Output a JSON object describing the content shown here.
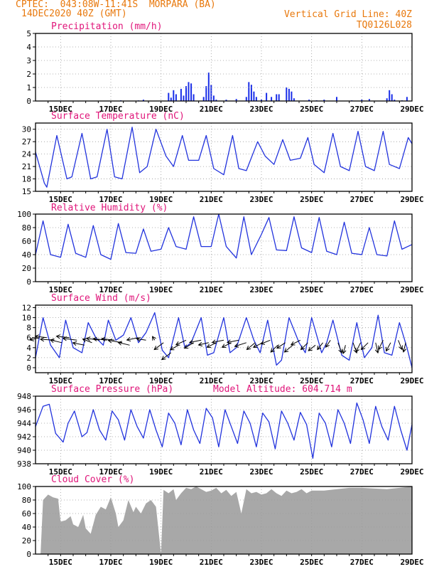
{
  "header": {
    "title": "CPTEC:  043:08W-11:41S  MORPARA (BA)",
    "date": "14DEC2020 40Z (GMT)",
    "grid_line": "Vertical Grid Line: 40Z",
    "code": "TQ0126L028"
  },
  "colors": {
    "series": "#2233dd",
    "bars": "#1a2ee8",
    "cloud": "#a8a8a8",
    "title": "#e0157a",
    "header": "#e8780c",
    "grid": "#9a9a9a",
    "wind_arrow": "#000000"
  },
  "x_axis": {
    "tick_labels": [
      "15DEC",
      "17DEC",
      "19DEC",
      "21DEC",
      "23DEC",
      "25DEC",
      "27DEC",
      "29DEC"
    ],
    "tick_days": [
      15,
      17,
      19,
      21,
      23,
      25,
      27,
      29
    ],
    "range_days": [
      14,
      29
    ],
    "minor_step_days": 0.5
  },
  "chart_data": [
    {
      "type": "bar",
      "title": "Precipitation (mm/h)",
      "ylim": [
        0,
        5
      ],
      "yticks": [
        0,
        1,
        2,
        3,
        4,
        5
      ],
      "grid": true,
      "x": [
        17.4,
        18.1,
        18.3,
        19.3,
        19.4,
        19.5,
        19.6,
        19.8,
        19.9,
        20.0,
        20.1,
        20.2,
        20.3,
        20.7,
        20.8,
        20.9,
        21.0,
        21.1,
        21.2,
        21.6,
        22.0,
        22.4,
        22.5,
        22.6,
        22.7,
        22.8,
        23.0,
        23.2,
        23.4,
        23.6,
        23.7,
        24.0,
        24.1,
        24.2,
        24.3,
        24.9,
        25.2,
        25.5,
        26.0,
        26.6,
        27.0,
        27.3,
        28.0,
        28.1,
        28.2,
        28.3,
        28.6,
        28.8
      ],
      "values": [
        0.05,
        0.04,
        0.1,
        0.6,
        0.25,
        0.8,
        0.5,
        0.9,
        0.4,
        1.1,
        1.4,
        1.3,
        0.5,
        0.3,
        1.1,
        2.1,
        1.2,
        0.4,
        0.1,
        0.1,
        0.15,
        0.3,
        1.4,
        1.2,
        0.7,
        0.3,
        0.1,
        0.6,
        0.3,
        0.5,
        0.5,
        1.0,
        0.9,
        0.7,
        0.2,
        0.1,
        0.05,
        0.1,
        0.3,
        0.05,
        0.1,
        0.15,
        0.2,
        0.8,
        0.5,
        0.1,
        0.05,
        0.3
      ]
    },
    {
      "type": "line",
      "title": "Surface Temperature (nC)",
      "ylim": [
        15,
        31.5
      ],
      "yticks": [
        15,
        18,
        21,
        24,
        27,
        30
      ],
      "grid": true,
      "x": [
        14.0,
        14.35,
        14.45,
        14.85,
        15.25,
        15.45,
        15.85,
        16.2,
        16.45,
        16.85,
        17.15,
        17.45,
        17.85,
        18.15,
        18.45,
        18.8,
        19.2,
        19.5,
        19.85,
        20.1,
        20.5,
        20.8,
        21.1,
        21.5,
        21.85,
        22.1,
        22.4,
        22.85,
        23.15,
        23.5,
        23.85,
        24.15,
        24.55,
        24.85,
        25.1,
        25.5,
        25.85,
        26.15,
        26.5,
        26.85,
        27.15,
        27.5,
        27.85,
        28.1,
        28.5,
        28.85,
        29.0
      ],
      "series": [
        {
          "values": [
            24.5,
            17.0,
            16.0,
            28.5,
            18.0,
            18.5,
            29.0,
            18.0,
            18.5,
            30.0,
            18.5,
            18.0,
            30.5,
            19.5,
            21.0,
            30.0,
            23.5,
            21.0,
            28.5,
            22.5,
            22.5,
            28.5,
            20.5,
            19.0,
            28.5,
            20.5,
            20.0,
            27.0,
            23.5,
            21.5,
            27.5,
            22.5,
            23.0,
            28.0,
            21.5,
            19.5,
            29.0,
            21.0,
            20.0,
            29.5,
            21.0,
            20.0,
            29.5,
            21.5,
            20.5,
            28.0,
            26.5
          ]
        }
      ]
    },
    {
      "type": "line",
      "title": "Relative Humidity (%)",
      "ylim": [
        0,
        100
      ],
      "yticks": [
        0,
        20,
        40,
        60,
        80,
        100
      ],
      "grid": true,
      "x": [
        14.0,
        14.3,
        14.6,
        15.0,
        15.3,
        15.6,
        16.0,
        16.3,
        16.6,
        17.0,
        17.3,
        17.6,
        18.0,
        18.3,
        18.6,
        19.0,
        19.3,
        19.6,
        20.0,
        20.3,
        20.6,
        21.0,
        21.3,
        21.6,
        22.0,
        22.3,
        22.6,
        23.0,
        23.3,
        23.6,
        24.0,
        24.3,
        24.6,
        25.0,
        25.3,
        25.6,
        26.0,
        26.3,
        26.6,
        27.0,
        27.3,
        27.6,
        28.0,
        28.3,
        28.6,
        29.0
      ],
      "series": [
        {
          "values": [
            40,
            90,
            40,
            36,
            85,
            42,
            36,
            83,
            40,
            33,
            86,
            43,
            42,
            78,
            45,
            48,
            80,
            52,
            48,
            96,
            52,
            52,
            100,
            52,
            35,
            96,
            40,
            70,
            95,
            47,
            46,
            96,
            50,
            43,
            95,
            45,
            40,
            88,
            42,
            40,
            80,
            40,
            38,
            90,
            48,
            55
          ]
        }
      ]
    },
    {
      "type": "line",
      "title": "Surface Wind (m/s)",
      "ylim": [
        -1,
        12.5
      ],
      "yticks": [
        0,
        2,
        4,
        6,
        8,
        10,
        12
      ],
      "grid": true,
      "x": [
        14.0,
        14.3,
        14.6,
        14.95,
        15.2,
        15.5,
        15.85,
        16.1,
        16.4,
        16.7,
        16.9,
        17.2,
        17.5,
        17.8,
        18.1,
        18.4,
        18.75,
        19.05,
        19.3,
        19.7,
        19.95,
        20.2,
        20.6,
        20.85,
        21.1,
        21.5,
        21.75,
        22.0,
        22.4,
        22.7,
        22.95,
        23.25,
        23.6,
        23.8,
        24.1,
        24.5,
        24.75,
        25.0,
        25.4,
        25.6,
        25.85,
        26.2,
        26.5,
        26.8,
        27.1,
        27.4,
        27.65,
        27.9,
        28.2,
        28.5,
        28.8,
        29.0
      ],
      "series": [
        {
          "values": [
            2.0,
            10.0,
            4.5,
            2.0,
            9.5,
            4.0,
            3.0,
            9.0,
            6.0,
            4.5,
            9.5,
            5.5,
            6.5,
            10.0,
            5.0,
            7.0,
            11.0,
            3.5,
            2.0,
            10.0,
            4.0,
            5.0,
            10.0,
            2.5,
            3.0,
            10.0,
            3.0,
            4.0,
            10.0,
            5.5,
            3.0,
            9.5,
            0.5,
            1.5,
            10.0,
            5.0,
            3.0,
            10.0,
            3.0,
            5.0,
            9.5,
            2.5,
            1.5,
            9.0,
            2.0,
            4.0,
            10.5,
            3.0,
            2.5,
            9.0,
            4.0,
            0.0
          ]
        }
      ],
      "arrows": {
        "x": [
          14.15,
          14.45,
          14.75,
          15.05,
          15.35,
          15.65,
          15.95,
          16.25,
          16.55,
          16.85,
          17.15,
          17.45,
          17.75,
          18.1,
          18.4,
          18.75,
          19.1,
          19.4,
          19.7,
          20.0,
          20.3,
          20.6,
          20.9,
          21.2,
          21.5,
          21.8,
          22.1,
          22.4,
          22.75,
          23.05,
          23.35,
          23.65,
          23.95,
          24.25,
          24.55,
          24.85,
          25.15,
          25.45,
          25.75,
          26.05,
          26.35,
          26.65,
          26.95,
          27.25,
          27.55,
          27.85,
          28.15,
          28.45,
          28.75
        ],
        "y": [
          6.0,
          6.0,
          5.5,
          5.0,
          6.0,
          5.5,
          4.5,
          5.0,
          5.5,
          5.5,
          5.5,
          5.0,
          4.5,
          6.0,
          5.5,
          5.5,
          5.0,
          3.0,
          4.5,
          5.5,
          5.0,
          5.5,
          5.0,
          5.0,
          5.5,
          5.0,
          5.5,
          5.0,
          5.0,
          5.0,
          5.5,
          4.5,
          5.0,
          4.5,
          5.5,
          5.0,
          4.5,
          5.0,
          5.5,
          5.0,
          4.5,
          5.0,
          5.0,
          5.0,
          5.0,
          5.5,
          5.0,
          5.5,
          5.0
        ],
        "u": [
          -2.0,
          -2.5,
          -3.0,
          -2.5,
          -2.8,
          -3.0,
          -2.5,
          -2.0,
          -2.8,
          -3.0,
          -2.8,
          -3.0,
          -2.5,
          -2.5,
          -2.0,
          -0.5,
          -2.0,
          -2.0,
          -1.8,
          -2.2,
          -2.0,
          -2.5,
          -2.2,
          -2.0,
          -2.5,
          -2.0,
          -2.5,
          -2.5,
          -1.8,
          -2.0,
          -2.0,
          -1.5,
          -1.8,
          -1.8,
          -2.0,
          -1.5,
          -1.5,
          -1.2,
          -1.0,
          0.8,
          -0.5,
          0.8,
          -1.0,
          -1.5,
          0.5,
          -1.0,
          -1.0,
          0.8,
          -0.5
        ],
        "v": [
          -0.5,
          0.3,
          0.2,
          0.6,
          0.3,
          0.4,
          0.5,
          0.8,
          0.4,
          0.3,
          0.3,
          0.5,
          0.6,
          -0.5,
          0.3,
          0.8,
          -1.5,
          -1.5,
          -1.0,
          -1.0,
          -1.2,
          -0.5,
          -0.5,
          -1.0,
          -0.5,
          -1.0,
          -0.5,
          -0.8,
          -1.5,
          -1.0,
          -0.8,
          -1.5,
          -1.2,
          -1.5,
          -1.0,
          -1.5,
          -1.2,
          -1.5,
          -1.5,
          -2.2,
          -1.8,
          -2.2,
          -2.0,
          -1.5,
          -2.2,
          -2.0,
          -1.8,
          -2.0,
          -2.0
        ]
      }
    },
    {
      "type": "line",
      "title": "Surface Pressure (hPa)",
      "annotation": "Model Altitude: 604.714 m",
      "ylim": [
        938,
        948
      ],
      "yticks": [
        938,
        940,
        942,
        944,
        946,
        948
      ],
      "grid": true,
      "x": [
        14.0,
        14.3,
        14.55,
        14.8,
        15.1,
        15.3,
        15.55,
        15.85,
        16.05,
        16.3,
        16.55,
        16.8,
        17.05,
        17.3,
        17.55,
        17.8,
        18.05,
        18.3,
        18.55,
        18.8,
        19.05,
        19.3,
        19.55,
        19.8,
        20.05,
        20.3,
        20.55,
        20.8,
        21.05,
        21.3,
        21.55,
        21.8,
        22.05,
        22.3,
        22.55,
        22.8,
        23.05,
        23.3,
        23.55,
        23.8,
        24.05,
        24.3,
        24.55,
        24.8,
        25.05,
        25.3,
        25.55,
        25.8,
        26.05,
        26.3,
        26.55,
        26.8,
        27.05,
        27.3,
        27.55,
        27.8,
        28.05,
        28.3,
        28.55,
        28.8,
        29.0
      ],
      "series": [
        {
          "values": [
            943.5,
            946.5,
            946.8,
            942.5,
            941.2,
            944.0,
            945.8,
            942.0,
            942.6,
            946.0,
            943.0,
            941.5,
            945.8,
            944.5,
            941.5,
            946.0,
            943.5,
            941.8,
            946.0,
            943.0,
            940.5,
            945.5,
            944.0,
            940.8,
            946.0,
            943.0,
            941.0,
            946.2,
            944.8,
            940.5,
            946.0,
            943.5,
            941.0,
            945.8,
            944.0,
            940.5,
            945.5,
            944.2,
            940.2,
            945.8,
            944.0,
            941.5,
            945.6,
            943.8,
            938.8,
            945.5,
            944.0,
            940.5,
            946.0,
            944.0,
            941.0,
            947.0,
            944.5,
            941.0,
            946.5,
            943.5,
            941.5,
            946.5,
            943.0,
            940.0,
            943.8
          ]
        }
      ]
    },
    {
      "type": "area",
      "title": "Cloud Cover (%)",
      "ylim": [
        0,
        100
      ],
      "yticks": [
        0,
        20,
        40,
        60,
        80,
        100
      ],
      "grid": true,
      "x": [
        14.0,
        14.2,
        14.3,
        14.5,
        14.7,
        14.9,
        15.0,
        15.2,
        15.4,
        15.5,
        15.7,
        15.9,
        16.0,
        16.2,
        16.4,
        16.6,
        16.8,
        17.0,
        17.2,
        17.3,
        17.5,
        17.7,
        17.9,
        18.0,
        18.2,
        18.4,
        18.6,
        18.8,
        19.0,
        19.1,
        19.3,
        19.5,
        19.6,
        19.8,
        20.0,
        20.2,
        20.4,
        20.6,
        20.8,
        21.0,
        21.2,
        21.4,
        21.6,
        21.8,
        22.0,
        22.2,
        22.4,
        22.6,
        22.8,
        23.0,
        23.2,
        23.4,
        23.6,
        23.8,
        24.0,
        24.2,
        24.4,
        24.6,
        24.8,
        25.0,
        25.5,
        26.0,
        26.5,
        27.0,
        27.5,
        28.0,
        28.5,
        29.0
      ],
      "values": [
        0,
        0,
        80,
        88,
        84,
        82,
        48,
        50,
        56,
        44,
        40,
        58,
        38,
        30,
        58,
        70,
        66,
        84,
        60,
        40,
        50,
        80,
        62,
        70,
        60,
        75,
        80,
        70,
        0,
        95,
        90,
        96,
        80,
        90,
        98,
        96,
        100,
        96,
        92,
        94,
        98,
        90,
        95,
        86,
        92,
        60,
        96,
        90,
        92,
        88,
        90,
        96,
        90,
        86,
        94,
        90,
        92,
        96,
        90,
        94,
        94,
        96,
        98,
        98,
        97,
        96,
        98,
        100
      ]
    }
  ]
}
